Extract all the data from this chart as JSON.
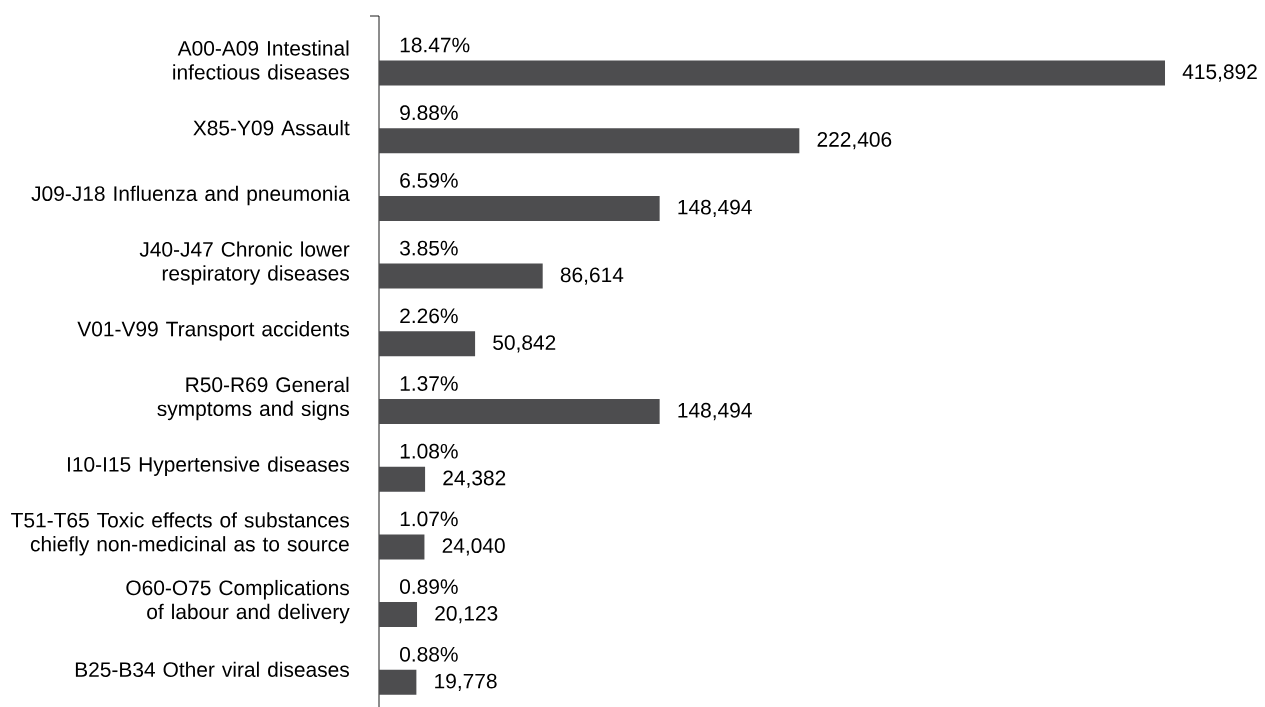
{
  "chart_data": {
    "type": "bar",
    "orientation": "horizontal",
    "categories": [
      "A00-A09 Intestinal infectious diseases",
      "X85-Y09 Assault",
      "J09-J18 Influenza and pneumonia",
      "J40-J47 Chronic lower respiratory diseases",
      "V01-V99 Transport accidents",
      "R50-R69 General symptoms and signs",
      "I10-I15 Hypertensive diseases",
      "T51-T65 Toxic effects of substances chiefly non-medicinal as to source",
      "O60-O75 Complications of labour and delivery",
      "B25-B34 Other viral diseases"
    ],
    "values": [
      415892,
      222406,
      148494,
      86614,
      50842,
      148494,
      24382,
      24040,
      20123,
      19778
    ],
    "value_labels": [
      "415,892",
      "222,406",
      "148,494",
      "86,614",
      "50,842",
      "148,494",
      "24,382",
      "24,040",
      "20,123",
      "19,778"
    ],
    "color": "#4d4d4f",
    "tick_labels": "y",
    "annotations": [
      "18.47%",
      "9.88%",
      "6.59%",
      "3.85%",
      "2.26%",
      "1.37%",
      "1.08%",
      "1.07%",
      "0.89%",
      "0.88%"
    ]
  }
}
